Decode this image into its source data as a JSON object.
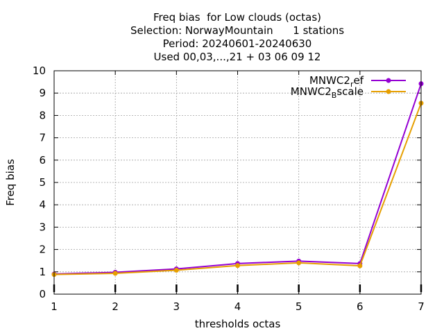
{
  "chart_data": {
    "type": "line",
    "title_lines": [
      "Freq bias  for Low clouds (octas)",
      "Selection: NorwayMountain      1 stations",
      "Period: 20240601-20240630",
      "Used 00,03,...,21 + 03 06 09 12"
    ],
    "xlabel": "thresholds octas",
    "ylabel": "Freq bias",
    "x": [
      1,
      2,
      3,
      4,
      5,
      6,
      7
    ],
    "xlim": [
      1,
      7
    ],
    "ylim": [
      0,
      10
    ],
    "xticks": [
      1,
      2,
      3,
      4,
      5,
      6,
      7
    ],
    "yticks": [
      0,
      1,
      2,
      3,
      4,
      5,
      6,
      7,
      8,
      9,
      10
    ],
    "grid": true,
    "legend_position": "top-right",
    "series": [
      {
        "name": "MNWC2_ref",
        "legend_main": "MNWC2",
        "legend_sub": "r",
        "legend_rest": "ef",
        "color": "#9400d3",
        "values": [
          0.9,
          0.98,
          1.13,
          1.37,
          1.48,
          1.37,
          9.42
        ]
      },
      {
        "name": "MNWC2_Bscale",
        "legend_main": "MNWC2",
        "legend_sub": "B",
        "legend_rest": "scale",
        "color": "#e69f00",
        "values": [
          0.88,
          0.93,
          1.07,
          1.28,
          1.4,
          1.27,
          8.55
        ]
      }
    ]
  }
}
